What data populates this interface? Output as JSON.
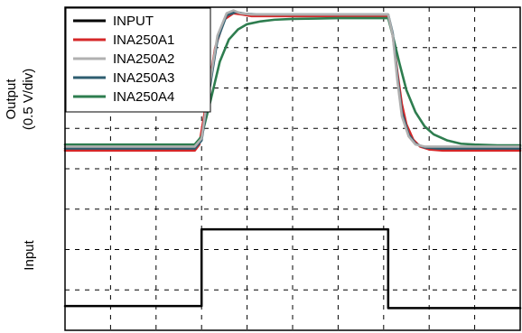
{
  "chart_data": {
    "type": "line",
    "title": "",
    "ylabel_output": [
      "Output",
      "(0.5 V/div)"
    ],
    "ylabel_input": "Input",
    "grid": true,
    "grid_style": "dashed",
    "legend_placement": "top-left",
    "x_divisions": 10,
    "y_divisions": 8,
    "series": [
      {
        "name": "INPUT",
        "color": "#000000",
        "x": [
          0,
          3.0,
          3.0,
          7.1,
          7.1,
          10
        ],
        "y": [
          -3.4,
          -3.4,
          -1.5,
          -1.5,
          -3.45,
          -3.45
        ]
      },
      {
        "name": "INA250A1",
        "color": "#d62728",
        "x": [
          0,
          2.85,
          2.95,
          3.1,
          3.3,
          3.5,
          3.7,
          3.9,
          4.1,
          4.3,
          7.1,
          7.2,
          7.3,
          7.4,
          7.5,
          7.65,
          7.8,
          8.0,
          8.3,
          10
        ],
        "y": [
          0.45,
          0.45,
          0.6,
          1.6,
          3.0,
          3.7,
          3.85,
          3.82,
          3.78,
          3.78,
          3.78,
          3.3,
          2.4,
          1.6,
          1.1,
          0.72,
          0.55,
          0.48,
          0.45,
          0.45
        ]
      },
      {
        "name": "INA250A2",
        "color": "#b0b0b0",
        "x": [
          0,
          2.85,
          3.0,
          3.15,
          3.35,
          3.55,
          3.7,
          3.85,
          4.1,
          7.1,
          7.2,
          7.3,
          7.4,
          7.55,
          7.7,
          7.9,
          8.2,
          10
        ],
        "y": [
          0.55,
          0.55,
          0.75,
          1.9,
          3.3,
          3.85,
          3.92,
          3.85,
          3.82,
          3.82,
          3.3,
          2.2,
          1.3,
          0.8,
          0.6,
          0.55,
          0.55,
          0.55
        ]
      },
      {
        "name": "INA250A3",
        "color": "#2e5e70",
        "x": [
          0,
          2.85,
          3.0,
          3.15,
          3.35,
          3.55,
          3.75,
          3.95,
          4.2,
          7.1,
          7.2,
          7.3,
          7.4,
          7.55,
          7.7,
          7.9,
          8.2,
          10
        ],
        "y": [
          0.5,
          0.5,
          0.7,
          1.8,
          3.2,
          3.8,
          3.88,
          3.84,
          3.82,
          3.82,
          3.35,
          2.3,
          1.4,
          0.85,
          0.62,
          0.53,
          0.5,
          0.5
        ]
      },
      {
        "name": "INA250A4",
        "color": "#2e7d4f",
        "x": [
          0,
          2.85,
          3.0,
          3.2,
          3.4,
          3.6,
          3.8,
          4.0,
          4.3,
          4.6,
          5.0,
          5.5,
          6.0,
          7.1,
          7.2,
          7.35,
          7.5,
          7.7,
          7.9,
          8.1,
          8.4,
          8.7,
          9.0,
          9.5,
          10
        ],
        "y": [
          0.6,
          0.6,
          0.8,
          1.7,
          2.65,
          3.2,
          3.45,
          3.58,
          3.65,
          3.69,
          3.71,
          3.72,
          3.73,
          3.73,
          3.3,
          2.6,
          1.95,
          1.4,
          1.05,
          0.85,
          0.7,
          0.62,
          0.6,
          0.58,
          0.58
        ]
      }
    ],
    "xlim": [
      0,
      10
    ],
    "ylim": [
      -4,
      4
    ]
  }
}
